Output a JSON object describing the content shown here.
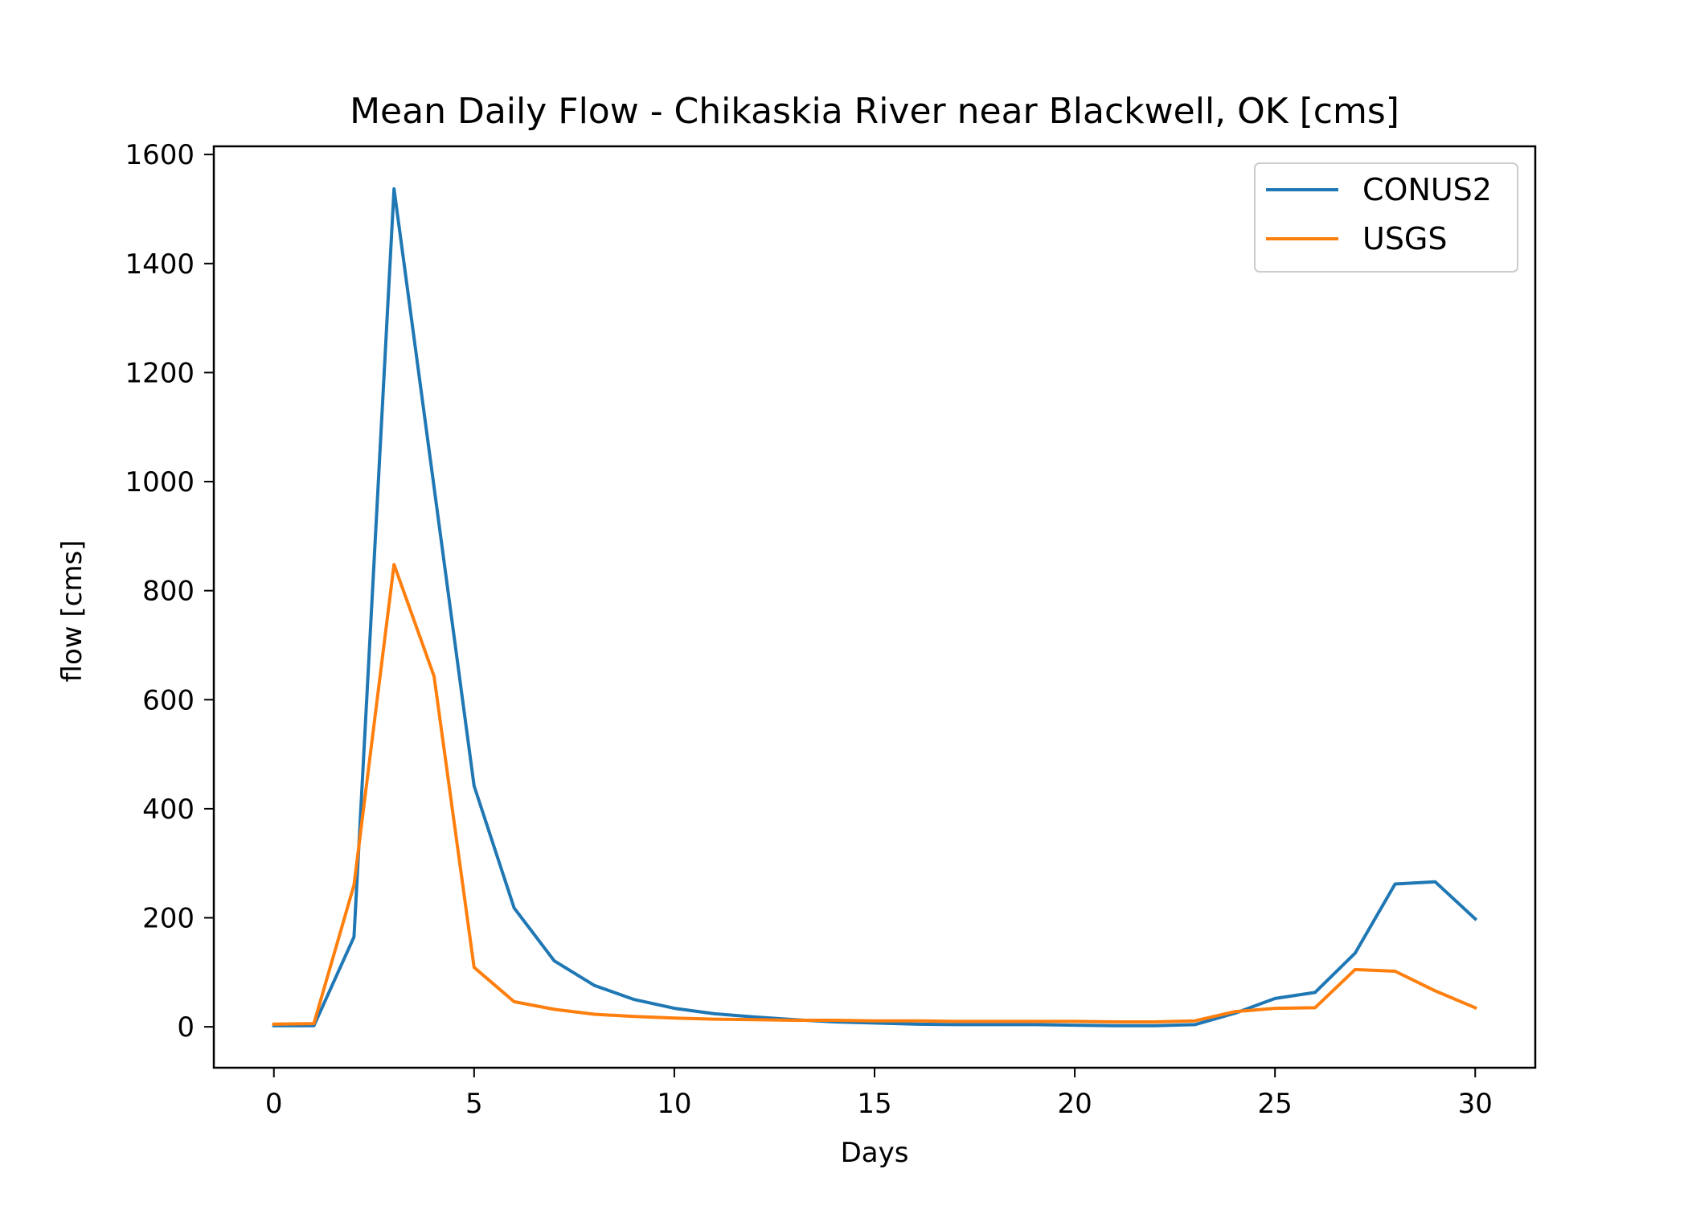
{
  "chart_data": {
    "type": "line",
    "title": "Mean Daily Flow - Chikaskia River near Blackwell, OK [cms]",
    "xlabel": "Days",
    "ylabel": "flow [cms]",
    "xlim": [
      -1.5,
      31.5
    ],
    "ylim": [
      -75,
      1615
    ],
    "xticks": [
      0,
      5,
      10,
      15,
      20,
      25,
      30
    ],
    "yticks": [
      0,
      200,
      400,
      600,
      800,
      1000,
      1200,
      1400,
      1600
    ],
    "legend_position": "top-right",
    "grid": false,
    "x": [
      0,
      1,
      2,
      3,
      4,
      5,
      6,
      7,
      8,
      9,
      10,
      11,
      12,
      13,
      14,
      15,
      16,
      17,
      18,
      19,
      20,
      21,
      22,
      23,
      24,
      25,
      26,
      27,
      28,
      29,
      30
    ],
    "series": [
      {
        "name": "CONUS2",
        "color": "#1f77b4",
        "values": [
          2,
          2,
          165,
          1537,
          990,
          442,
          218,
          121,
          76,
          50,
          34,
          24,
          18,
          13,
          9,
          7,
          5,
          4,
          4,
          4,
          3,
          2,
          2,
          4,
          25,
          52,
          63,
          135,
          262,
          266,
          198
        ]
      },
      {
        "name": "USGS",
        "color": "#ff7f0e",
        "values": [
          5,
          6,
          260,
          848,
          643,
          109,
          46,
          32,
          23,
          19,
          16,
          14,
          13,
          12,
          12,
          11,
          11,
          10,
          10,
          10,
          10,
          9,
          9,
          11,
          28,
          34,
          35,
          105,
          102,
          66,
          35
        ]
      }
    ]
  }
}
